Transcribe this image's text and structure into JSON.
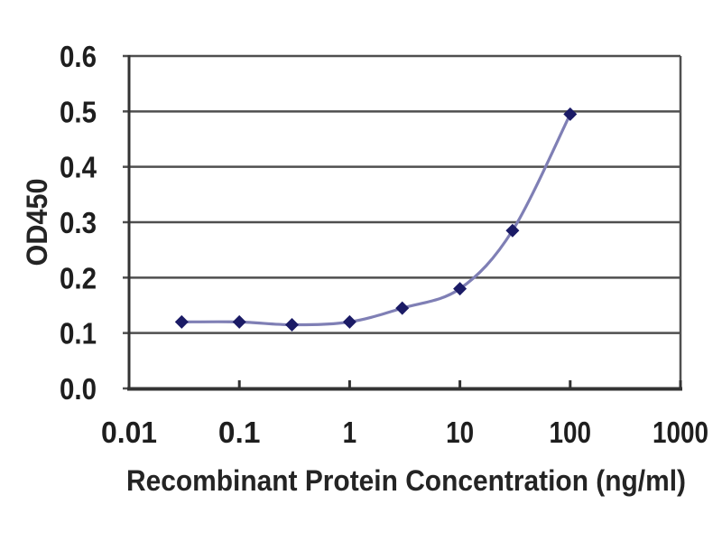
{
  "chart_data": {
    "type": "line",
    "title": "",
    "xlabel": "Recombinant Protein Concentration (ng/ml)",
    "ylabel": "OD450",
    "x_scale": "log",
    "x": [
      0.03,
      0.1,
      0.3,
      1,
      3,
      10,
      30,
      100
    ],
    "y": [
      0.12,
      0.12,
      0.115,
      0.12,
      0.145,
      0.18,
      0.285,
      0.495
    ],
    "x_ticks": [
      0.01,
      0.1,
      1,
      10,
      100,
      1000
    ],
    "x_tick_labels": [
      "0.01",
      "0.1",
      "1",
      "10",
      "100",
      "1000"
    ],
    "y_ticks": [
      0.0,
      0.1,
      0.2,
      0.3,
      0.4,
      0.5,
      0.6
    ],
    "y_tick_labels": [
      "0.0",
      "0.1",
      "0.2",
      "0.3",
      "0.4",
      "0.5",
      "0.6"
    ],
    "xlim": [
      0.01,
      1000
    ],
    "ylim": [
      0,
      0.6
    ],
    "grid": "horizontal",
    "legend": "none",
    "marker": "diamond",
    "line_style": "smooth",
    "colors": {
      "line": "#7f7fb5",
      "marker": "#1b1b66",
      "grid": "#4f4f4f",
      "axis": "#333333",
      "text": "#1e1e1e"
    }
  }
}
